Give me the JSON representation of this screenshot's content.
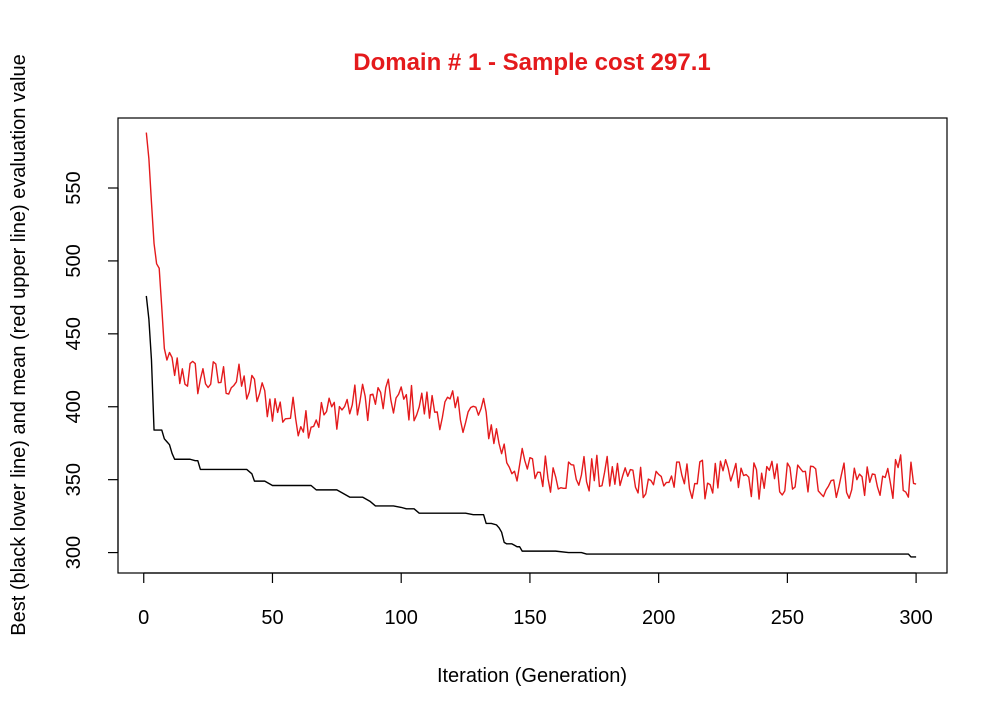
{
  "chart_data": {
    "type": "line",
    "title": "Domain # 1  - Sample cost 297.1",
    "xlabel": "Iteration (Generation)",
    "ylabel": "Best (black lower line) and mean (red upper line) evaluation value",
    "xlim": [
      -10,
      312
    ],
    "ylim": [
      286,
      598
    ],
    "x_ticks": [
      0,
      50,
      100,
      150,
      200,
      250,
      300
    ],
    "y_ticks": [
      300,
      350,
      400,
      450,
      500,
      550
    ],
    "grid": false,
    "legend": "none",
    "colors": {
      "title": "#e41a1c",
      "mean": "#e41a1c",
      "best": "#000000"
    },
    "series": [
      {
        "key": "best",
        "x": [
          1,
          2,
          3,
          4,
          5,
          6,
          7,
          8,
          9,
          10,
          11,
          12,
          15,
          18,
          20,
          21,
          22,
          25,
          30,
          35,
          40,
          42,
          43,
          45,
          47,
          50,
          55,
          60,
          65,
          67,
          70,
          72,
          75,
          77,
          80,
          82,
          85,
          88,
          90,
          92,
          95,
          97,
          100,
          102,
          105,
          107,
          110,
          113,
          115,
          118,
          120,
          122,
          125,
          128,
          130,
          132,
          133,
          135,
          137,
          138,
          139,
          140,
          141,
          142,
          143,
          144,
          145,
          146,
          147,
          148,
          149,
          150,
          155,
          160,
          165,
          170,
          172,
          175,
          200,
          250,
          297,
          298,
          300
        ],
        "values": [
          476,
          460,
          432,
          384,
          384,
          384,
          384,
          378,
          376,
          374,
          368,
          364,
          364,
          364,
          363,
          363,
          357,
          357,
          357,
          357,
          357,
          354,
          349,
          349,
          349,
          346,
          346,
          346,
          346,
          343,
          343,
          343,
          343,
          341,
          338,
          338,
          338,
          335,
          332,
          332,
          332,
          332,
          331,
          330,
          330,
          327,
          327,
          327,
          327,
          327,
          327,
          327,
          327,
          326,
          326,
          326,
          320,
          320,
          319,
          317,
          314,
          307,
          306,
          306,
          306,
          305,
          304,
          304,
          301,
          301,
          301,
          301,
          301,
          301,
          300,
          300,
          299,
          299,
          299,
          299,
          299,
          297,
          297
        ]
      }
    ]
  }
}
